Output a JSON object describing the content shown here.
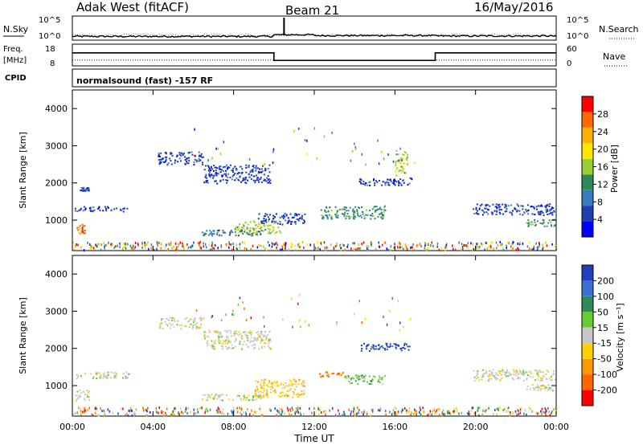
{
  "header": {
    "station": "Adak West (fitACF)",
    "beam": "Beam 21",
    "date": "16/May/2016"
  },
  "noise_panel": {
    "left_label": "N.Sky",
    "left_ticks": [
      "10^5",
      "10^0"
    ],
    "right_label": "N.Search",
    "right_ticks": [
      "10^5",
      "10^0"
    ]
  },
  "freq_panel": {
    "left_label_line1": "Freq.",
    "left_label_line2": "[MHz]",
    "left_ticks": [
      "18",
      "8"
    ],
    "right_label": "Nave",
    "right_ticks": [
      "60",
      "0"
    ]
  },
  "cpid_panel": {
    "label": "CPID",
    "text": "normalsound (fast) -157 RF"
  },
  "axes": {
    "xlabel": "Time UT",
    "x_ticks": [
      "00:00",
      "04:00",
      "08:00",
      "12:00",
      "16:00",
      "20:00",
      "00:00"
    ],
    "ylabel": "Slant Range [km]",
    "y_ticks": [
      "1000",
      "2000",
      "3000",
      "4000"
    ]
  },
  "power_scale": {
    "label": "Power [dB]",
    "ticks": [
      "28",
      "24",
      "20",
      "16",
      "12",
      "8",
      "4"
    ],
    "colors": [
      "#ff0000",
      "#ff6a00",
      "#ffb000",
      "#ffe600",
      "#9acd32",
      "#2e8b57",
      "#3a7abf",
      "#1e3fb0",
      "#0000ff"
    ]
  },
  "velocity_scale": {
    "label": "Velocity [m s⁻¹]",
    "ticks": [
      "200",
      "100",
      "50",
      "15",
      "-15",
      "-50",
      "-100",
      "-200"
    ],
    "colors": [
      "#1f3fbf",
      "#3e6fd0",
      "#2e8b57",
      "#66cc33",
      "#c8c8c8",
      "#ffd000",
      "#ff9900",
      "#ff6600",
      "#ff0000"
    ]
  },
  "chart_data": [
    {
      "type": "line",
      "name": "noise",
      "x_range_hours": [
        0,
        24
      ],
      "sky_level_segments": [
        [
          0,
          0.35
        ],
        [
          9,
          0.35
        ],
        [
          10,
          0.55
        ],
        [
          12,
          0.45
        ],
        [
          18,
          0.4
        ],
        [
          24,
          0.35
        ]
      ],
      "search_level_segments": [
        [
          0,
          0.3
        ],
        [
          24,
          0.3
        ]
      ]
    },
    {
      "type": "line",
      "name": "frequency",
      "ylim": [
        8,
        18
      ],
      "freq_segments": [
        [
          0,
          10,
          14
        ],
        [
          10,
          18,
          10.5
        ],
        [
          18,
          24,
          14
        ]
      ],
      "nave_ylim": [
        0,
        60
      ],
      "nave_level": 16
    },
    {
      "type": "heatmap",
      "name": "power",
      "x_range_hours": [
        0,
        24
      ],
      "y_range_km": [
        180,
        4500
      ],
      "scatter_regions": [
        {
          "t0": 0.1,
          "t1": 2.8,
          "r0": 1250,
          "r1": 1380,
          "c": 7
        },
        {
          "t0": 0.1,
          "t1": 0.6,
          "r0": 650,
          "r1": 900,
          "c": 1
        },
        {
          "t0": 0.3,
          "t1": 0.8,
          "r0": 1800,
          "r1": 1900,
          "c": 7
        },
        {
          "t0": 4.2,
          "t1": 6.5,
          "r0": 2500,
          "r1": 2850,
          "c": 7
        },
        {
          "t0": 6.5,
          "t1": 9.8,
          "r0": 2000,
          "r1": 2500,
          "c": 7
        },
        {
          "t0": 6.4,
          "t1": 9.4,
          "r0": 600,
          "r1": 760,
          "c": 6
        },
        {
          "t0": 8.0,
          "t1": 10.3,
          "r0": 640,
          "r1": 1000,
          "c": 4
        },
        {
          "t0": 9.2,
          "t1": 11.5,
          "r0": 900,
          "r1": 1200,
          "c": 7
        },
        {
          "t0": 12.3,
          "t1": 15.5,
          "r0": 1050,
          "r1": 1400,
          "c": 5
        },
        {
          "t0": 14.2,
          "t1": 16.8,
          "r0": 1950,
          "r1": 2150,
          "c": 7
        },
        {
          "t0": 16.0,
          "t1": 16.6,
          "r0": 2200,
          "r1": 2900,
          "c": 4
        },
        {
          "t0": 19.8,
          "t1": 23.9,
          "r0": 1150,
          "r1": 1450,
          "c": 7
        },
        {
          "t0": 22.5,
          "t1": 23.9,
          "r0": 850,
          "r1": 1050,
          "c": 5
        }
      ]
    },
    {
      "type": "heatmap",
      "name": "velocity",
      "x_range_hours": [
        0,
        24
      ],
      "y_range_km": [
        180,
        4500
      ],
      "scatter_regions": [
        {
          "t0": 0.1,
          "t1": 2.8,
          "r0": 1200,
          "r1": 1380,
          "c": 4
        },
        {
          "t0": 0.1,
          "t1": 0.8,
          "r0": 600,
          "r1": 900,
          "c": 4
        },
        {
          "t0": 4.3,
          "t1": 6.5,
          "r0": 2550,
          "r1": 2850,
          "c": 4
        },
        {
          "t0": 6.5,
          "t1": 9.8,
          "r0": 2000,
          "r1": 2500,
          "c": 4
        },
        {
          "t0": 6.4,
          "t1": 9.4,
          "r0": 620,
          "r1": 780,
          "c": 4
        },
        {
          "t0": 9.0,
          "t1": 11.5,
          "r0": 700,
          "r1": 1200,
          "c": 5
        },
        {
          "t0": 12.2,
          "t1": 13.5,
          "r0": 1250,
          "r1": 1400,
          "c": 7
        },
        {
          "t0": 13.5,
          "t1": 15.5,
          "r0": 1050,
          "r1": 1300,
          "c": 3
        },
        {
          "t0": 14.2,
          "t1": 16.8,
          "r0": 1950,
          "r1": 2150,
          "c": 0
        },
        {
          "t0": 19.8,
          "t1": 23.9,
          "r0": 1150,
          "r1": 1450,
          "c": 4
        },
        {
          "t0": 22.5,
          "t1": 23.9,
          "r0": 850,
          "r1": 1050,
          "c": 4
        }
      ]
    }
  ]
}
